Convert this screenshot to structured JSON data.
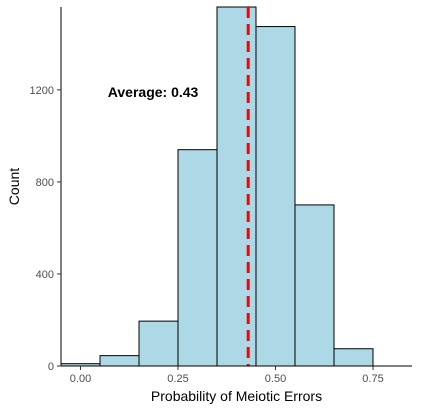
{
  "chart_data": {
    "type": "bar",
    "subtype": "histogram",
    "title": "",
    "xlabel": "Probability of Meiotic Errors",
    "ylabel": "Count",
    "bins": [
      {
        "x0": -0.05,
        "x1": 0.05,
        "count": 10
      },
      {
        "x0": 0.05,
        "x1": 0.15,
        "count": 45
      },
      {
        "x0": 0.15,
        "x1": 0.25,
        "count": 195
      },
      {
        "x0": 0.25,
        "x1": 0.35,
        "count": 940
      },
      {
        "x0": 0.35,
        "x1": 0.45,
        "count": 1560
      },
      {
        "x0": 0.45,
        "x1": 0.55,
        "count": 1475
      },
      {
        "x0": 0.55,
        "x1": 0.65,
        "count": 700
      },
      {
        "x0": 0.65,
        "x1": 0.75,
        "count": 75
      }
    ],
    "xlim": [
      -0.05,
      0.85
    ],
    "ylim": [
      0,
      1560
    ],
    "x_ticks": [
      {
        "value": 0.0,
        "label": "0.00"
      },
      {
        "value": 0.25,
        "label": "0.25"
      },
      {
        "value": 0.5,
        "label": "0.50"
      },
      {
        "value": 0.75,
        "label": "0.75"
      }
    ],
    "y_ticks": [
      {
        "value": 0,
        "label": "0"
      },
      {
        "value": 400,
        "label": "400"
      },
      {
        "value": 800,
        "label": "800"
      },
      {
        "value": 1200,
        "label": "1200"
      }
    ],
    "mean_line": {
      "value": 0.43,
      "style": "dashed"
    },
    "annotation": {
      "text": "Average:  0.43",
      "x": 0.07,
      "y": 1190
    },
    "grid": false,
    "colors": {
      "bar_fill": "#add8e6",
      "bar_stroke": "#000000",
      "mean_line": "#ff0000",
      "axis": "#000000",
      "tick_label": "#4d4d4d"
    }
  }
}
